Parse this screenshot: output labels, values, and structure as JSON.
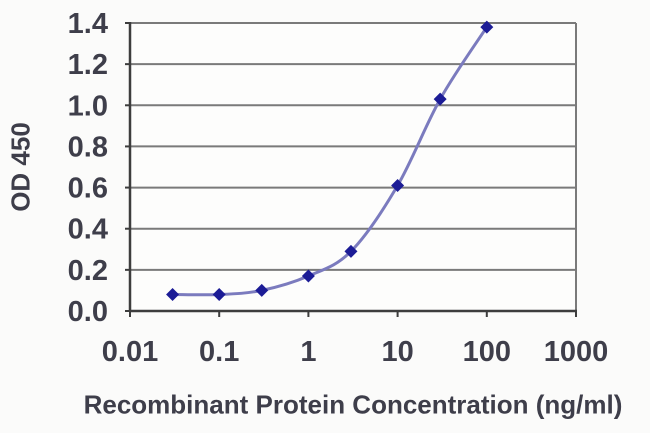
{
  "chart_data": {
    "type": "line",
    "title": "",
    "xlabel": "Recombinant Protein Concentration (ng/ml)",
    "ylabel": "OD 450",
    "x_scale": "log",
    "xlim": [
      0.01,
      1000
    ],
    "ylim": [
      0,
      1.4
    ],
    "x": [
      0.03,
      0.1,
      0.3,
      1,
      3,
      10,
      30,
      100
    ],
    "series": [
      {
        "name": "OD 450",
        "values": [
          0.08,
          0.08,
          0.1,
          0.17,
          0.29,
          0.61,
          1.03,
          1.38
        ]
      }
    ],
    "x_ticks": [
      0.01,
      0.1,
      1,
      10,
      100,
      1000
    ],
    "x_tick_labels": [
      "0.01",
      "0.1",
      "1",
      "10",
      "100",
      "1000"
    ],
    "y_ticks": [
      0,
      0.2,
      0.4,
      0.6,
      0.8,
      1.0,
      1.2,
      1.4
    ],
    "y_tick_labels": [
      "0.0",
      "0.2",
      "0.4",
      "0.6",
      "0.8",
      "1.0",
      "1.2",
      "1.4"
    ],
    "grid": "horizontal",
    "legend": "none",
    "marker": "diamond",
    "line_smooth": true,
    "colors": {
      "line": "#7b7bbe",
      "marker": "#1c1c96",
      "gridline": "#7a7a7a",
      "axis": "#3d3d3d",
      "text": "#3e3e4a",
      "plot_background": "#fdfdfc",
      "page_background": "#fbfbfa"
    }
  }
}
